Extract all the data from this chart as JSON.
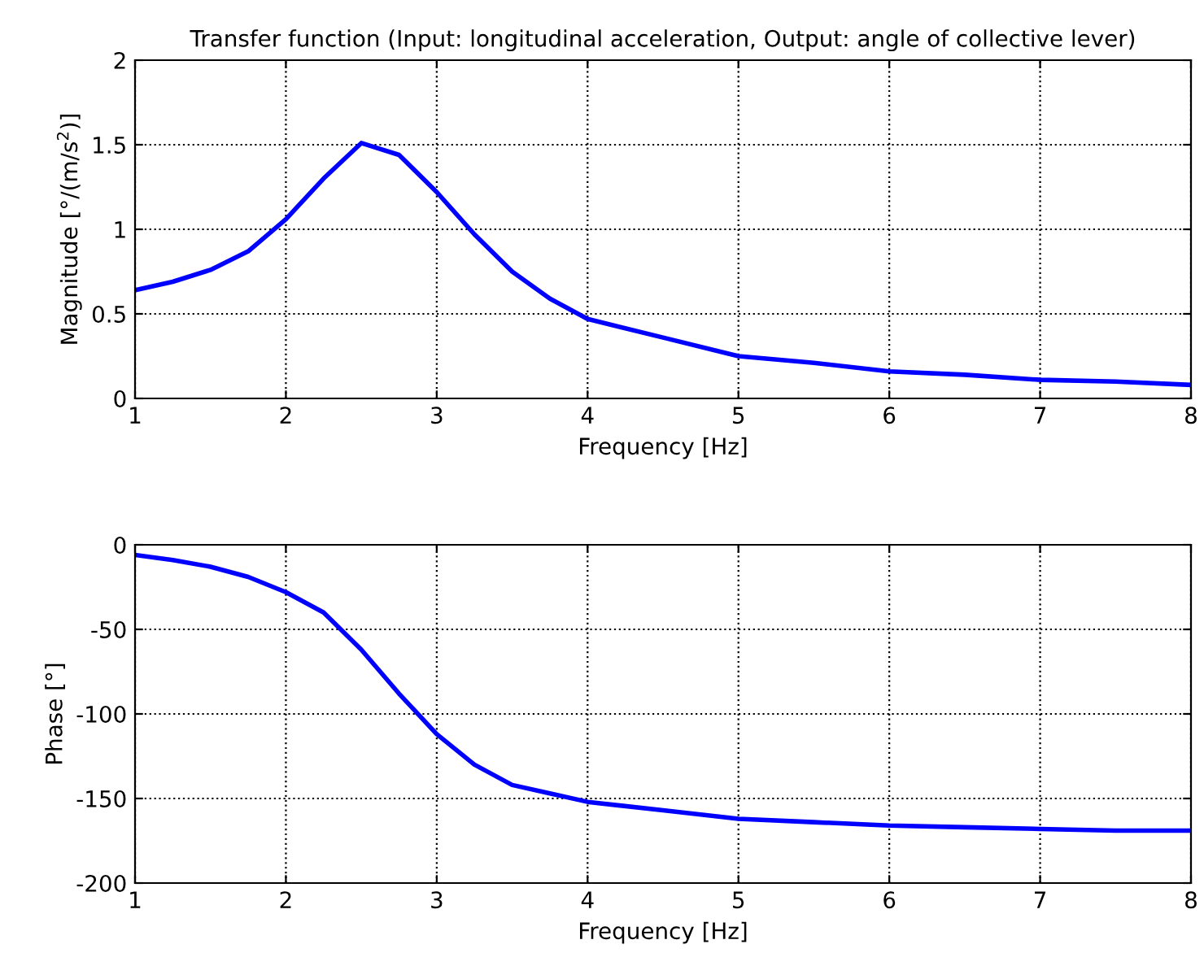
{
  "chart_data": [
    {
      "type": "line",
      "title": "Transfer function (Input: longitudinal acceleration, Output: angle of collective lever)",
      "xlabel": "Frequency [Hz]",
      "ylabel": "Magnitude [°/(m/s$^{2}$)]",
      "x": [
        1,
        1.25,
        1.5,
        1.75,
        2,
        2.25,
        2.5,
        2.75,
        3,
        3.25,
        3.5,
        3.75,
        4,
        4.5,
        5,
        5.5,
        6,
        6.5,
        7,
        7.5,
        8
      ],
      "series": [
        {
          "color": "#0000ff",
          "values": [
            0.64,
            0.69,
            0.76,
            0.87,
            1.06,
            1.3,
            1.51,
            1.44,
            1.22,
            0.97,
            0.75,
            0.59,
            0.47,
            0.36,
            0.25,
            0.21,
            0.16,
            0.14,
            0.11,
            0.1,
            0.08
          ]
        }
      ],
      "xlim": [
        1,
        8
      ],
      "xticks": [
        1,
        2,
        3,
        4,
        5,
        6,
        7,
        8
      ],
      "ylim": [
        0,
        2
      ],
      "yticks": [
        0,
        0.5,
        1,
        1.5,
        2
      ],
      "grid": true,
      "line_style": "solid"
    },
    {
      "type": "line",
      "xlabel": "Frequency [Hz]",
      "ylabel": "Phase [°]",
      "x": [
        1,
        1.25,
        1.5,
        1.75,
        2,
        2.25,
        2.5,
        2.75,
        3,
        3.25,
        3.5,
        3.75,
        4,
        4.5,
        5,
        5.5,
        6,
        6.5,
        7,
        7.5,
        8
      ],
      "series": [
        {
          "color": "#0000ff",
          "values": [
            -6,
            -9,
            -13,
            -19,
            -28,
            -40,
            -62,
            -88,
            -112,
            -130,
            -142,
            -147,
            -152,
            -157,
            -162,
            -164,
            -166,
            -167,
            -168,
            -169,
            -169
          ]
        }
      ],
      "xlim": [
        1,
        8
      ],
      "xticks": [
        1,
        2,
        3,
        4,
        5,
        6,
        7,
        8
      ],
      "ylim": [
        -200,
        0
      ],
      "yticks": [
        -200,
        -150,
        -100,
        -50,
        0
      ],
      "grid": true,
      "line_style": "solid"
    }
  ]
}
